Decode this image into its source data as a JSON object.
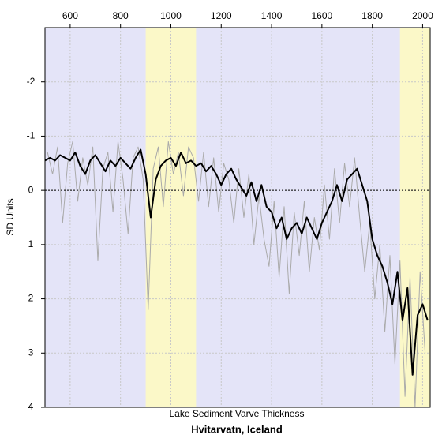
{
  "chart_data": {
    "type": "line",
    "title": "Hvitarvatn, Iceland",
    "subtitle": "Lake Sediment Varve Thickness",
    "y_label": "SD Units",
    "xlim": [
      500,
      2030
    ],
    "xticks": [
      600,
      800,
      1000,
      1200,
      1400,
      1600,
      1800,
      2000
    ],
    "ylim": [
      -3,
      4
    ],
    "yticks": [
      -2,
      -1,
      0,
      1,
      2,
      3,
      4
    ],
    "y_inverted": true,
    "grid": true,
    "reference_line": 0,
    "background": "#e4e4f8",
    "bands": [
      {
        "from": 900,
        "to": 1100,
        "color": "#fbf8c8"
      },
      {
        "from": 1910,
        "to": 2030,
        "color": "#fbf8c8"
      }
    ],
    "series": [
      {
        "color": "#aaaaaa",
        "width": 1,
        "x": [
          510,
          530,
          550,
          570,
          590,
          610,
          630,
          650,
          670,
          690,
          710,
          730,
          750,
          770,
          790,
          810,
          830,
          850,
          870,
          890,
          910,
          930,
          950,
          970,
          990,
          1010,
          1030,
          1050,
          1070,
          1090,
          1110,
          1130,
          1150,
          1170,
          1190,
          1210,
          1230,
          1250,
          1270,
          1290,
          1310,
          1330,
          1350,
          1370,
          1390,
          1410,
          1430,
          1450,
          1470,
          1490,
          1510,
          1530,
          1550,
          1570,
          1590,
          1610,
          1630,
          1650,
          1670,
          1690,
          1710,
          1730,
          1750,
          1770,
          1790,
          1810,
          1830,
          1850,
          1870,
          1890,
          1910,
          1930,
          1950,
          1970,
          1990,
          2010
        ],
        "values": [
          -0.7,
          -0.3,
          -0.8,
          0.6,
          -0.5,
          -0.9,
          0.2,
          -0.6,
          -0.1,
          -0.8,
          1.3,
          -0.4,
          -0.7,
          0.4,
          -0.9,
          -0.2,
          0.8,
          -0.6,
          -0.8,
          -0.2,
          2.2,
          -0.4,
          -0.8,
          0.3,
          -0.9,
          -0.3,
          -0.7,
          0.1,
          -0.8,
          -0.6,
          0.2,
          -0.7,
          0.3,
          -0.6,
          0.4,
          -0.5,
          -0.2,
          0.6,
          -0.4,
          0.5,
          -0.3,
          1.0,
          0.1,
          0.9,
          1.4,
          0.2,
          1.6,
          0.3,
          1.9,
          0.4,
          1.2,
          0.2,
          1.5,
          0.5,
          1.1,
          -0.1,
          0.9,
          -0.4,
          0.6,
          -0.5,
          0.3,
          -0.6,
          0.5,
          1.5,
          0.6,
          2.0,
          1.0,
          2.6,
          1.2,
          3.2,
          1.3,
          3.8,
          1.6,
          4.0,
          1.5,
          3.0
        ]
      },
      {
        "color": "#000000",
        "width": 2,
        "x": [
          500,
          520,
          540,
          560,
          580,
          600,
          620,
          640,
          660,
          680,
          700,
          720,
          740,
          760,
          780,
          800,
          820,
          840,
          860,
          880,
          900,
          920,
          940,
          960,
          980,
          1000,
          1020,
          1040,
          1060,
          1080,
          1100,
          1120,
          1140,
          1160,
          1180,
          1200,
          1220,
          1240,
          1260,
          1280,
          1300,
          1320,
          1340,
          1360,
          1380,
          1400,
          1420,
          1440,
          1460,
          1480,
          1500,
          1520,
          1540,
          1560,
          1580,
          1600,
          1620,
          1640,
          1660,
          1680,
          1700,
          1720,
          1740,
          1760,
          1780,
          1800,
          1820,
          1840,
          1860,
          1880,
          1900,
          1920,
          1940,
          1960,
          1980,
          2000,
          2020
        ],
        "values": [
          -0.55,
          -0.6,
          -0.55,
          -0.65,
          -0.6,
          -0.55,
          -0.7,
          -0.45,
          -0.3,
          -0.55,
          -0.65,
          -0.5,
          -0.35,
          -0.55,
          -0.45,
          -0.6,
          -0.5,
          -0.4,
          -0.6,
          -0.75,
          -0.3,
          0.5,
          -0.2,
          -0.45,
          -0.55,
          -0.6,
          -0.45,
          -0.7,
          -0.5,
          -0.55,
          -0.45,
          -0.5,
          -0.35,
          -0.45,
          -0.3,
          -0.1,
          -0.3,
          -0.4,
          -0.2,
          -0.05,
          0.1,
          -0.15,
          0.2,
          -0.1,
          0.3,
          0.4,
          0.7,
          0.5,
          0.9,
          0.7,
          0.6,
          0.8,
          0.5,
          0.7,
          0.9,
          0.6,
          0.4,
          0.2,
          -0.1,
          0.2,
          -0.2,
          -0.3,
          -0.4,
          -0.1,
          0.2,
          0.9,
          1.2,
          1.4,
          1.7,
          2.1,
          1.5,
          2.4,
          1.8,
          3.4,
          2.3,
          2.1,
          2.4
        ]
      }
    ]
  }
}
